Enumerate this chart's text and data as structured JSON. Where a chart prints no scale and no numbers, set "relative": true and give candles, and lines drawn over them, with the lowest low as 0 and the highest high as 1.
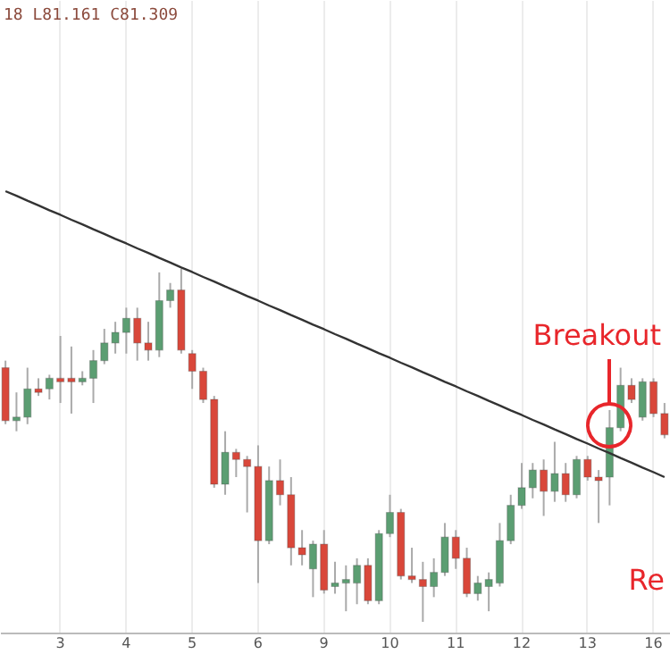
{
  "chart_data": {
    "type": "candlestick",
    "relative": true,
    "categories": [
      null,
      null,
      null,
      null,
      null,
      "3",
      null,
      null,
      null,
      null,
      null,
      "4",
      null,
      null,
      null,
      null,
      null,
      "5",
      null,
      null,
      null,
      null,
      null,
      "6",
      null,
      null,
      null,
      null,
      null,
      "9",
      null,
      null,
      null,
      null,
      null,
      "10",
      null,
      null,
      null,
      null,
      null,
      "11",
      null,
      null,
      null,
      null,
      null,
      "12",
      null,
      null,
      null,
      null,
      null,
      "13",
      null,
      null,
      null,
      null,
      null,
      "16",
      null
    ],
    "ohlc": [
      [
        0.72,
        0.74,
        0.56,
        0.57
      ],
      [
        0.57,
        0.65,
        0.54,
        0.58
      ],
      [
        0.58,
        0.72,
        0.56,
        0.66
      ],
      [
        0.66,
        0.69,
        0.64,
        0.65
      ],
      [
        0.66,
        0.7,
        0.63,
        0.69
      ],
      [
        0.69,
        0.81,
        0.62,
        0.68
      ],
      [
        0.69,
        0.78,
        0.59,
        0.68
      ],
      [
        0.68,
        0.71,
        0.67,
        0.69
      ],
      [
        0.69,
        0.77,
        0.62,
        0.74
      ],
      [
        0.74,
        0.83,
        0.73,
        0.79
      ],
      [
        0.79,
        0.85,
        0.76,
        0.82
      ],
      [
        0.82,
        0.89,
        0.76,
        0.86
      ],
      [
        0.86,
        0.89,
        0.74,
        0.79
      ],
      [
        0.79,
        0.85,
        0.74,
        0.77
      ],
      [
        0.77,
        0.99,
        0.75,
        0.91
      ],
      [
        0.91,
        0.96,
        0.89,
        0.94
      ],
      [
        0.94,
        1,
        0.76,
        0.77
      ],
      [
        0.76,
        0.77,
        0.66,
        0.71
      ],
      [
        0.71,
        0.72,
        0.62,
        0.63
      ],
      [
        0.63,
        0.64,
        0.38,
        0.39
      ],
      [
        0.39,
        0.54,
        0.36,
        0.48
      ],
      [
        0.48,
        0.49,
        0.41,
        0.46
      ],
      [
        0.46,
        0.47,
        0.31,
        0.44
      ],
      [
        0.44,
        0.5,
        0.11,
        0.23
      ],
      [
        0.23,
        0.44,
        0.22,
        0.4
      ],
      [
        0.4,
        0.46,
        0.33,
        0.36
      ],
      [
        0.36,
        0.41,
        0.16,
        0.21
      ],
      [
        0.21,
        0.26,
        0.16,
        0.19
      ],
      [
        0.15,
        0.23,
        0.07,
        0.22
      ],
      [
        0.22,
        0.26,
        0.08,
        0.09
      ],
      [
        0.1,
        0.17,
        0.08,
        0.11
      ],
      [
        0.11,
        0.16,
        0.03,
        0.12
      ],
      [
        0.11,
        0.18,
        0.05,
        0.16
      ],
      [
        0.16,
        0.18,
        0.05,
        0.06
      ],
      [
        0.06,
        0.26,
        0.05,
        0.25
      ],
      [
        0.25,
        0.36,
        0.24,
        0.31
      ],
      [
        0.31,
        0.32,
        0.12,
        0.13
      ],
      [
        0.13,
        0.21,
        0.11,
        0.12
      ],
      [
        0.12,
        0.17,
        0,
        0.1
      ],
      [
        0.1,
        0.18,
        0.07,
        0.14
      ],
      [
        0.14,
        0.28,
        0.13,
        0.24
      ],
      [
        0.24,
        0.26,
        0.15,
        0.18
      ],
      [
        0.18,
        0.21,
        0.07,
        0.08
      ],
      [
        0.08,
        0.13,
        0.06,
        0.11
      ],
      [
        0.1,
        0.14,
        0.03,
        0.12
      ],
      [
        0.11,
        0.28,
        0.1,
        0.23
      ],
      [
        0.23,
        0.36,
        0.22,
        0.33
      ],
      [
        0.33,
        0.45,
        0.32,
        0.38
      ],
      [
        0.38,
        0.45,
        0.35,
        0.43
      ],
      [
        0.43,
        0.46,
        0.3,
        0.37
      ],
      [
        0.37,
        0.51,
        0.34,
        0.42
      ],
      [
        0.42,
        0.45,
        0.34,
        0.36
      ],
      [
        0.36,
        0.47,
        0.35,
        0.46
      ],
      [
        0.46,
        0.47,
        0.4,
        0.41
      ],
      [
        0.41,
        0.43,
        0.28,
        0.4
      ],
      [
        0.41,
        0.6,
        0.33,
        0.55
      ],
      [
        0.55,
        0.72,
        0.54,
        0.67
      ],
      [
        0.67,
        0.69,
        0.62,
        0.63
      ],
      [
        0.58,
        0.69,
        0.57,
        0.68
      ],
      [
        0.68,
        0.69,
        0.58,
        0.59
      ],
      [
        0.59,
        0.62,
        0.52,
        0.53
      ]
    ],
    "colors": [
      "#d9473a",
      "#5b9e72",
      "#5b9e72",
      "#d9473a",
      "#5b9e72",
      "#d9473a",
      "#d9473a",
      "#5b9e72",
      "#5b9e72",
      "#5b9e72",
      "#5b9e72",
      "#5b9e72",
      "#d9473a",
      "#d9473a",
      "#5b9e72",
      "#5b9e72",
      "#d9473a",
      "#d9473a",
      "#d9473a",
      "#d9473a",
      "#5b9e72",
      "#d9473a",
      "#d9473a",
      "#d9473a",
      "#5b9e72",
      "#d9473a",
      "#d9473a",
      "#d9473a",
      "#5b9e72",
      "#d9473a",
      "#5b9e72",
      "#5b9e72",
      "#5b9e72",
      "#d9473a",
      "#5b9e72",
      "#5b9e72",
      "#d9473a",
      "#d9473a",
      "#d9473a",
      "#5b9e72",
      "#5b9e72",
      "#d9473a",
      "#d9473a",
      "#5b9e72",
      "#5b9e72",
      "#5b9e72",
      "#5b9e72",
      "#5b9e72",
      "#5b9e72",
      "#d9473a",
      "#5b9e72",
      "#d9473a",
      "#5b9e72",
      "#d9473a",
      "#d9473a",
      "#5b9e72",
      "#5b9e72",
      "#d9473a",
      "#5b9e72",
      "#d9473a",
      "#d9473a"
    ],
    "series": [
      {
        "type": "line",
        "color": "#333333",
        "values": [
          1.22,
          1.207,
          1.193,
          1.18,
          1.166,
          1.153,
          1.139,
          1.126,
          1.112,
          1.099,
          1.085,
          1.072,
          1.058,
          1.045,
          1.031,
          1.018,
          1.004,
          0.991,
          0.977,
          0.964,
          0.95,
          0.937,
          0.923,
          0.91,
          0.896,
          0.883,
          0.869,
          0.856,
          0.842,
          0.829,
          0.815,
          0.802,
          0.788,
          0.775,
          0.761,
          0.748,
          0.734,
          0.721,
          0.707,
          0.694,
          0.68,
          0.667,
          0.653,
          0.64,
          0.626,
          0.613,
          0.599,
          0.586,
          0.572,
          0.559,
          0.545,
          0.532,
          0.518,
          0.505,
          0.491,
          0.478,
          0.464,
          0.451,
          0.437,
          0.424,
          0.41
        ]
      }
    ],
    "grid": "x",
    "annotations": [
      "18 L81.161 C81.309",
      "Breakout",
      "Re"
    ]
  }
}
